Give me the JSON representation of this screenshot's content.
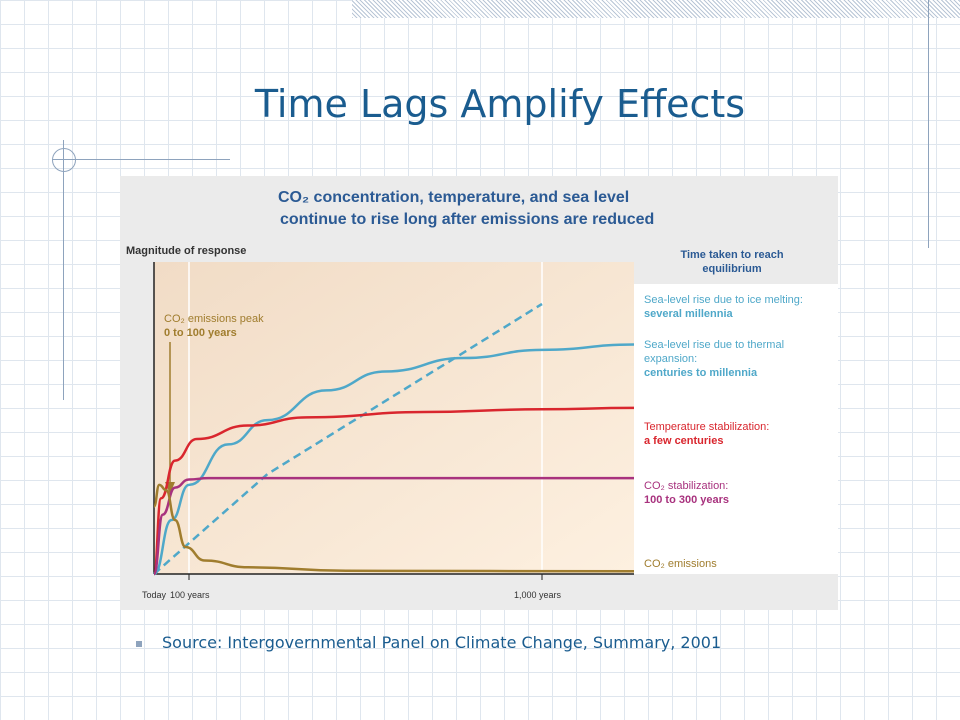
{
  "slide": {
    "title": "Time Lags Amplify Effects",
    "source": "Source: Intergovernmental Panel on Climate Change, Summary, 2001"
  },
  "chart_data": {
    "type": "line",
    "title_line1": "CO₂ concentration, temperature, and sea level",
    "title_line2": "continue to rise long after emissions are reduced",
    "ylabel": "Magnitude of response",
    "legend_title_line1": "Time taken to reach",
    "legend_title_line2": "equilibrium",
    "x_ticks": [
      "Today",
      "100 years",
      "1,000 years"
    ],
    "annotation": {
      "line1": "CO₂ emissions peak",
      "line2": "0 to 100 years"
    },
    "colors": {
      "sea_ice": "#4fa8c9",
      "sea_thermal": "#4fa8c9",
      "temperature": "#d9262e",
      "co2_stab": "#a8327e",
      "co2_emissions": "#a07d2e"
    },
    "series": [
      {
        "key": "sea_ice",
        "label_line1": "Sea-level rise due to ice melting:",
        "label_line2": "several millennia",
        "dashed": true,
        "values": [
          [
            0,
            0
          ],
          [
            300,
            0.37
          ],
          [
            1000,
            1.0
          ]
        ]
      },
      {
        "key": "sea_thermal",
        "label_line1": "Sea-level rise due to thermal",
        "label_line2": "expansion:",
        "label_line3": "centuries to millennia",
        "dashed": false,
        "values": [
          [
            0,
            0
          ],
          [
            50,
            0.2
          ],
          [
            100,
            0.33
          ],
          [
            200,
            0.48
          ],
          [
            300,
            0.57
          ],
          [
            450,
            0.68
          ],
          [
            600,
            0.75
          ],
          [
            800,
            0.8
          ],
          [
            1000,
            0.83
          ],
          [
            1200,
            0.85
          ]
        ]
      },
      {
        "key": "temperature",
        "label_line1": "Temperature stabilization:",
        "label_line2": "a few centuries",
        "dashed": false,
        "values": [
          [
            0,
            0
          ],
          [
            20,
            0.28
          ],
          [
            60,
            0.42
          ],
          [
            120,
            0.5
          ],
          [
            250,
            0.55
          ],
          [
            400,
            0.58
          ],
          [
            700,
            0.6
          ],
          [
            1000,
            0.61
          ],
          [
            1200,
            0.615
          ]
        ]
      },
      {
        "key": "co2_stab",
        "label_line1": "CO₂ stabilization:",
        "label_line2": "100 to 300 years",
        "dashed": false,
        "values": [
          [
            0,
            0
          ],
          [
            25,
            0.22
          ],
          [
            60,
            0.32
          ],
          [
            100,
            0.35
          ],
          [
            150,
            0.355
          ],
          [
            1200,
            0.355
          ]
        ]
      },
      {
        "key": "co2_emissions",
        "label_line1": "CO₂ emissions",
        "dashed": false,
        "values": [
          [
            0,
            0.25
          ],
          [
            15,
            0.33
          ],
          [
            35,
            0.31
          ],
          [
            60,
            0.2
          ],
          [
            90,
            0.1
          ],
          [
            140,
            0.05
          ],
          [
            250,
            0.025
          ],
          [
            500,
            0.012
          ],
          [
            1200,
            0.01
          ]
        ]
      }
    ]
  }
}
